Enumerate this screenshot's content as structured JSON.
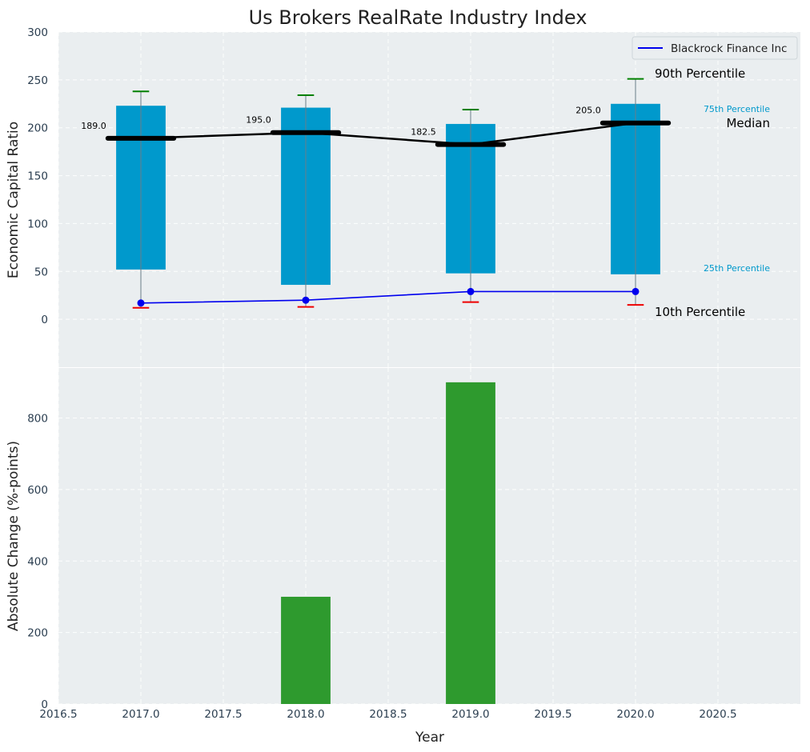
{
  "chart_data": [
    {
      "type": "box",
      "title": "Us Brokers RealRate Industry Index",
      "ylabel": "Economic Capital Ratio",
      "ylim": [
        -50,
        300
      ],
      "yticks": [
        0,
        50,
        100,
        150,
        200,
        250,
        300
      ],
      "x": [
        2017,
        2018,
        2019,
        2020
      ],
      "p10": [
        12,
        13,
        18,
        15
      ],
      "p25": [
        52,
        36,
        48,
        47
      ],
      "median": [
        189.0,
        195.0,
        182.5,
        205.0
      ],
      "median_labels": [
        "189.0",
        "195.0",
        "182.5",
        "205.0"
      ],
      "p75": [
        223,
        221,
        204,
        225
      ],
      "p90": [
        238,
        234,
        219,
        251
      ],
      "series": [
        {
          "name": "Blackrock Finance Inc",
          "values": [
            17,
            20,
            29,
            29
          ],
          "color": "#0000ee"
        }
      ],
      "legend": {
        "placement": "top-right",
        "entries": [
          "Blackrock Finance Inc"
        ]
      },
      "annotations": {
        "p90": "90th Percentile",
        "p75": "75th Percentile",
        "median": "Median",
        "p25": "25th Percentile",
        "p10": "10th Percentile"
      },
      "colors": {
        "box": "#0099cc",
        "median": "#000000",
        "whisker_top": "#008000",
        "whisker_bottom": "#ee0000",
        "series": "#0000ee",
        "annot_blue": "#0099cc"
      },
      "grid": true
    },
    {
      "type": "bar",
      "xlabel": "Year",
      "ylabel": "Absolute Change (%-points)",
      "x": [
        2017,
        2018,
        2019,
        2020
      ],
      "values": [
        0,
        300,
        900,
        0
      ],
      "ylim": [
        0,
        940
      ],
      "yticks": [
        0,
        200,
        400,
        600,
        800
      ],
      "xlim": [
        2016.5,
        2021.0
      ],
      "xticks": [
        "2016.5",
        "2017.0",
        "2017.5",
        "2018.0",
        "2018.5",
        "2019.0",
        "2019.5",
        "2020.0",
        "2020.5"
      ],
      "color": "#2e9a2e",
      "grid": true
    }
  ]
}
